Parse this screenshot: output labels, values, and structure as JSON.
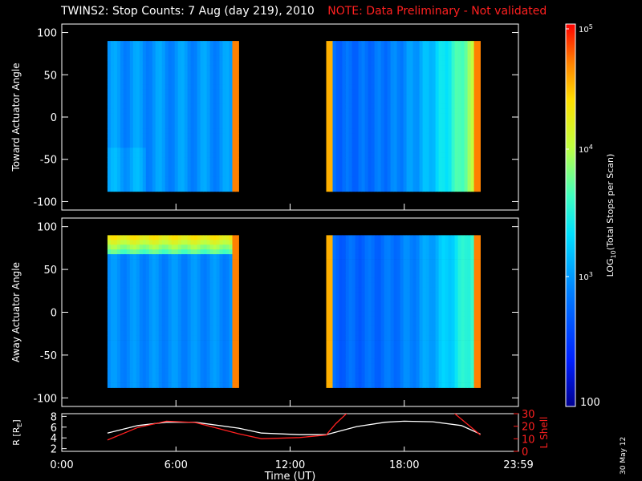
{
  "title": {
    "main": "TWINS2: Stop Counts:  7 Aug (day 219), 2010",
    "note": "NOTE: Data Preliminary - Not validated"
  },
  "stamp": "30 May 12",
  "colors": {
    "note": "#ff2020",
    "rshell": "#ff2020",
    "rline": "#ffffff"
  },
  "chart_data": [
    {
      "type": "heatmap",
      "ylabel": "Toward Actuator Angle",
      "ylim": [
        -110,
        110
      ],
      "yticks": [
        "100",
        "50",
        "0",
        "-50",
        "-100"
      ],
      "xlim": [
        0,
        24
      ],
      "colorscale": "rainbow-log",
      "data_windows": [
        {
          "x": [
            2.4,
            9.3
          ],
          "y": [
            -88,
            90
          ]
        },
        {
          "x": [
            13.9,
            22.0
          ],
          "y": [
            -88,
            90
          ]
        }
      ]
    },
    {
      "type": "heatmap",
      "ylabel": "Away Actuator Angle",
      "ylim": [
        -110,
        110
      ],
      "yticks": [
        "100",
        "50",
        "0",
        "-50",
        "-100"
      ],
      "xlim": [
        0,
        24
      ],
      "colorscale": "rainbow-log",
      "data_windows": [
        {
          "x": [
            2.4,
            9.3
          ],
          "y": [
            -88,
            90
          ]
        },
        {
          "x": [
            13.9,
            22.0
          ],
          "y": [
            -88,
            90
          ]
        }
      ]
    },
    {
      "type": "line",
      "xlabel": "Time (UT)",
      "xticks": [
        "0:00",
        "6:00",
        "12:00",
        "18:00",
        "23:59"
      ],
      "ylabel_left": "R [R",
      "ylabel_left_sub": "E",
      "ylabel_left_end": "]",
      "ylim_left": [
        1.5,
        8.5
      ],
      "yticks_left": [
        "8",
        "6",
        "4",
        "2"
      ],
      "ylabel_right": "L Shell",
      "ylim_right": [
        0,
        30
      ],
      "yticks_right": [
        "30",
        "20",
        "10",
        "0"
      ],
      "series": [
        {
          "axis": "left",
          "x": [
            2.4,
            4,
            5.5,
            7,
            9.3,
            10.5,
            12.5,
            13.9,
            15.5,
            17,
            18,
            19.5,
            21,
            22
          ],
          "y": [
            4.9,
            6.3,
            6.9,
            6.9,
            5.8,
            4.9,
            4.6,
            4.6,
            6.1,
            6.9,
            7.1,
            7.0,
            6.3,
            4.7
          ]
        },
        {
          "axis": "right",
          "x": [
            2.4,
            4,
            5.5,
            7,
            9.3,
            10.5,
            12.5,
            13.9,
            14.4,
            15.1
          ],
          "y": [
            9,
            19,
            24,
            23,
            14,
            10,
            11,
            13,
            22,
            32
          ]
        },
        {
          "axis": "right",
          "x": [
            20.5,
            22
          ],
          "y": [
            32,
            13
          ]
        }
      ]
    }
  ],
  "colorbar": {
    "label": "LOG",
    "label_sub": "10",
    "label_rest": "(Total Stops per Scan)",
    "tick_top": "10",
    "tick_top_exp": "5",
    "tick_mid": "10",
    "tick_mid_exp": "4",
    "tick_low": "10",
    "tick_low_exp": "3",
    "tick_bottom": "100"
  }
}
